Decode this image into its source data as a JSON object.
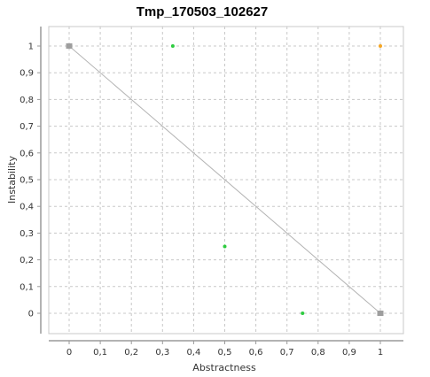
{
  "chart_data": {
    "type": "scatter",
    "title": "Tmp_170503_102627",
    "xlabel": "Abstractness",
    "ylabel": "Instability",
    "xlim": [
      0,
      1
    ],
    "ylim": [
      0,
      1
    ],
    "x_ticks": [
      "0",
      "0,1",
      "0,2",
      "0,3",
      "0,4",
      "0,5",
      "0,6",
      "0,7",
      "0,8",
      "0,9",
      "1"
    ],
    "y_ticks": [
      "0",
      "0,1",
      "0,2",
      "0,3",
      "0,4",
      "0,5",
      "0,6",
      "0,7",
      "0,8",
      "0,9",
      "1"
    ],
    "grid": true,
    "main_sequence": [
      [
        0,
        1
      ],
      [
        1,
        0
      ]
    ],
    "points": [
      {
        "x": 0,
        "y": 1,
        "color": "#9e9e9e",
        "kind": "reference"
      },
      {
        "x": 1,
        "y": 0,
        "color": "#9e9e9e",
        "kind": "reference"
      },
      {
        "x": 0.333,
        "y": 1,
        "color": "#2ecc40"
      },
      {
        "x": 0.5,
        "y": 0.25,
        "color": "#2ecc40"
      },
      {
        "x": 0.75,
        "y": 0,
        "color": "#2ecc40"
      },
      {
        "x": 1,
        "y": 1,
        "color": "#f5a623"
      }
    ]
  }
}
